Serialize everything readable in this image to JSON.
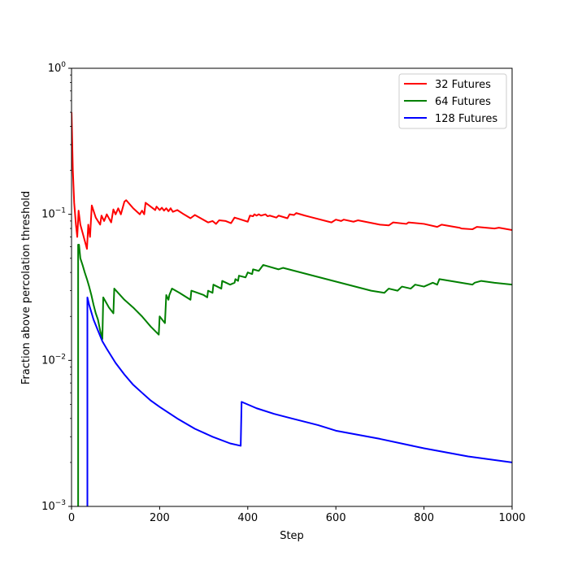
{
  "chart_data": {
    "type": "line",
    "title": "",
    "xlabel": "Step",
    "ylabel": "Fraction above percolation threshold",
    "xlim": [
      0,
      1000
    ],
    "ylim": [
      0.001,
      1
    ],
    "yscale": "log",
    "grid": false,
    "legend_position": "top-right",
    "x_ticks": [
      0,
      200,
      400,
      600,
      800,
      1000
    ],
    "x_tick_labels": [
      "0",
      "200",
      "400",
      "600",
      "800",
      "1000"
    ],
    "y_ticks": [
      0.001,
      0.01,
      0.1,
      1
    ],
    "y_tick_labels": [
      {
        "base": "10",
        "exp": "−3"
      },
      {
        "base": "10",
        "exp": "−2"
      },
      {
        "base": "10",
        "exp": "−1"
      },
      {
        "base": "10",
        "exp": "0"
      }
    ],
    "series": [
      {
        "name": "32 Futures",
        "color": "#ff0000",
        "points": [
          [
            0,
            0.5
          ],
          [
            3,
            0.2
          ],
          [
            6,
            0.12
          ],
          [
            10,
            0.085
          ],
          [
            13,
            0.07
          ],
          [
            16,
            0.106
          ],
          [
            20,
            0.085
          ],
          [
            25,
            0.075
          ],
          [
            30,
            0.066
          ],
          [
            35,
            0.058
          ],
          [
            38,
            0.085
          ],
          [
            42,
            0.07
          ],
          [
            46,
            0.115
          ],
          [
            55,
            0.095
          ],
          [
            65,
            0.085
          ],
          [
            68,
            0.098
          ],
          [
            74,
            0.09
          ],
          [
            80,
            0.1
          ],
          [
            90,
            0.088
          ],
          [
            95,
            0.108
          ],
          [
            100,
            0.1
          ],
          [
            106,
            0.11
          ],
          [
            112,
            0.1
          ],
          [
            120,
            0.122
          ],
          [
            124,
            0.125
          ],
          [
            140,
            0.11
          ],
          [
            155,
            0.1
          ],
          [
            160,
            0.106
          ],
          [
            165,
            0.1
          ],
          [
            168,
            0.12
          ],
          [
            190,
            0.107
          ],
          [
            193,
            0.113
          ],
          [
            200,
            0.107
          ],
          [
            205,
            0.111
          ],
          [
            210,
            0.106
          ],
          [
            215,
            0.11
          ],
          [
            220,
            0.105
          ],
          [
            225,
            0.11
          ],
          [
            230,
            0.104
          ],
          [
            240,
            0.107
          ],
          [
            255,
            0.1
          ],
          [
            270,
            0.094
          ],
          [
            280,
            0.099
          ],
          [
            310,
            0.088
          ],
          [
            320,
            0.09
          ],
          [
            328,
            0.086
          ],
          [
            335,
            0.091
          ],
          [
            350,
            0.09
          ],
          [
            362,
            0.087
          ],
          [
            370,
            0.095
          ],
          [
            380,
            0.093
          ],
          [
            400,
            0.089
          ],
          [
            405,
            0.098
          ],
          [
            412,
            0.097
          ],
          [
            415,
            0.1
          ],
          [
            420,
            0.098
          ],
          [
            425,
            0.1
          ],
          [
            430,
            0.098
          ],
          [
            440,
            0.1
          ],
          [
            445,
            0.097
          ],
          [
            450,
            0.098
          ],
          [
            465,
            0.095
          ],
          [
            470,
            0.098
          ],
          [
            490,
            0.094
          ],
          [
            495,
            0.1
          ],
          [
            505,
            0.099
          ],
          [
            510,
            0.102
          ],
          [
            530,
            0.098
          ],
          [
            590,
            0.088
          ],
          [
            600,
            0.092
          ],
          [
            612,
            0.09
          ],
          [
            618,
            0.092
          ],
          [
            640,
            0.089
          ],
          [
            650,
            0.091
          ],
          [
            700,
            0.085
          ],
          [
            720,
            0.084
          ],
          [
            730,
            0.088
          ],
          [
            760,
            0.086
          ],
          [
            765,
            0.088
          ],
          [
            800,
            0.086
          ],
          [
            830,
            0.082
          ],
          [
            840,
            0.085
          ],
          [
            880,
            0.081
          ],
          [
            885,
            0.08
          ],
          [
            910,
            0.079
          ],
          [
            920,
            0.082
          ],
          [
            960,
            0.08
          ],
          [
            970,
            0.081
          ],
          [
            1000,
            0.078
          ]
        ]
      },
      {
        "name": "64 Futures",
        "color": "#008000",
        "points": [
          [
            0,
            0.0008
          ],
          [
            15,
            0.0008
          ],
          [
            15,
            0.062
          ],
          [
            17,
            0.062
          ],
          [
            20,
            0.05
          ],
          [
            25,
            0.045
          ],
          [
            30,
            0.04
          ],
          [
            35,
            0.036
          ],
          [
            40,
            0.032
          ],
          [
            45,
            0.028
          ],
          [
            50,
            0.024
          ],
          [
            55,
            0.021
          ],
          [
            60,
            0.019
          ],
          [
            65,
            0.016
          ],
          [
            70,
            0.014
          ],
          [
            72,
            0.027
          ],
          [
            85,
            0.023
          ],
          [
            95,
            0.021
          ],
          [
            97,
            0.031
          ],
          [
            120,
            0.026
          ],
          [
            140,
            0.023
          ],
          [
            160,
            0.02
          ],
          [
            180,
            0.017
          ],
          [
            198,
            0.015
          ],
          [
            200,
            0.02
          ],
          [
            212,
            0.018
          ],
          [
            215,
            0.028
          ],
          [
            220,
            0.026
          ],
          [
            222,
            0.028
          ],
          [
            228,
            0.031
          ],
          [
            245,
            0.029
          ],
          [
            270,
            0.026
          ],
          [
            272,
            0.03
          ],
          [
            300,
            0.028
          ],
          [
            308,
            0.027
          ],
          [
            310,
            0.03
          ],
          [
            320,
            0.029
          ],
          [
            322,
            0.033
          ],
          [
            340,
            0.031
          ],
          [
            342,
            0.035
          ],
          [
            360,
            0.033
          ],
          [
            370,
            0.034
          ],
          [
            372,
            0.036
          ],
          [
            378,
            0.035
          ],
          [
            380,
            0.038
          ],
          [
            395,
            0.037
          ],
          [
            400,
            0.04
          ],
          [
            410,
            0.039
          ],
          [
            412,
            0.042
          ],
          [
            425,
            0.041
          ],
          [
            435,
            0.045
          ],
          [
            470,
            0.042
          ],
          [
            480,
            0.043
          ],
          [
            680,
            0.03
          ],
          [
            710,
            0.029
          ],
          [
            720,
            0.031
          ],
          [
            740,
            0.03
          ],
          [
            750,
            0.032
          ],
          [
            770,
            0.031
          ],
          [
            780,
            0.033
          ],
          [
            800,
            0.032
          ],
          [
            820,
            0.034
          ],
          [
            830,
            0.033
          ],
          [
            835,
            0.036
          ],
          [
            910,
            0.033
          ],
          [
            915,
            0.034
          ],
          [
            930,
            0.035
          ],
          [
            960,
            0.034
          ],
          [
            1000,
            0.033
          ]
        ]
      },
      {
        "name": "128 Futures",
        "color": "#0000ff",
        "points": [
          [
            0,
            0.0008
          ],
          [
            36,
            0.0008
          ],
          [
            36,
            0.027
          ],
          [
            40,
            0.024
          ],
          [
            50,
            0.019
          ],
          [
            60,
            0.016
          ],
          [
            70,
            0.0135
          ],
          [
            80,
            0.012
          ],
          [
            100,
            0.0096
          ],
          [
            120,
            0.008
          ],
          [
            140,
            0.0068
          ],
          [
            160,
            0.006
          ],
          [
            180,
            0.0053
          ],
          [
            200,
            0.0048
          ],
          [
            240,
            0.004
          ],
          [
            280,
            0.0034
          ],
          [
            320,
            0.003
          ],
          [
            360,
            0.0027
          ],
          [
            384,
            0.0026
          ],
          [
            386,
            0.0052
          ],
          [
            420,
            0.0047
          ],
          [
            460,
            0.0043
          ],
          [
            500,
            0.004
          ],
          [
            560,
            0.0036
          ],
          [
            600,
            0.0033
          ],
          [
            700,
            0.0029
          ],
          [
            800,
            0.0025
          ],
          [
            900,
            0.0022
          ],
          [
            1000,
            0.002
          ]
        ]
      }
    ]
  }
}
